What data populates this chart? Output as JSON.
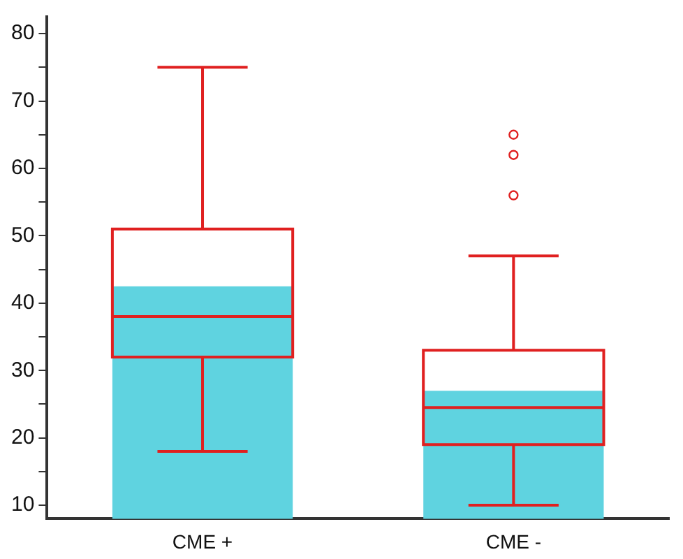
{
  "chart_data": {
    "type": "box",
    "categories": [
      "CME +",
      "CME -"
    ],
    "ylim": [
      8,
      82.5
    ],
    "yticks": [
      10,
      {
        "value": 15,
        "label": null
      },
      20,
      {
        "value": 25,
        "label": null
      },
      30,
      {
        "value": 35,
        "label": null
      },
      40,
      {
        "value": 45,
        "label": null
      },
      50,
      {
        "value": 55,
        "label": null
      },
      60,
      {
        "value": 65,
        "label": null
      },
      70,
      {
        "value": 75,
        "label": null
      },
      80
    ],
    "grid": false,
    "legend": false,
    "series": [
      {
        "type": "bar",
        "color": "#5fd3e0",
        "values": [
          42.5,
          27
        ]
      },
      {
        "type": "box",
        "color": "#e02020",
        "boxes": [
          {
            "low": 18,
            "q1": 32,
            "median": 38,
            "q3": 51,
            "high": 75
          },
          {
            "low": 10,
            "q1": 19,
            "median": 24.5,
            "q3": 33,
            "high": 47,
            "outliers": [
              56,
              62,
              65
            ]
          }
        ]
      }
    ]
  }
}
